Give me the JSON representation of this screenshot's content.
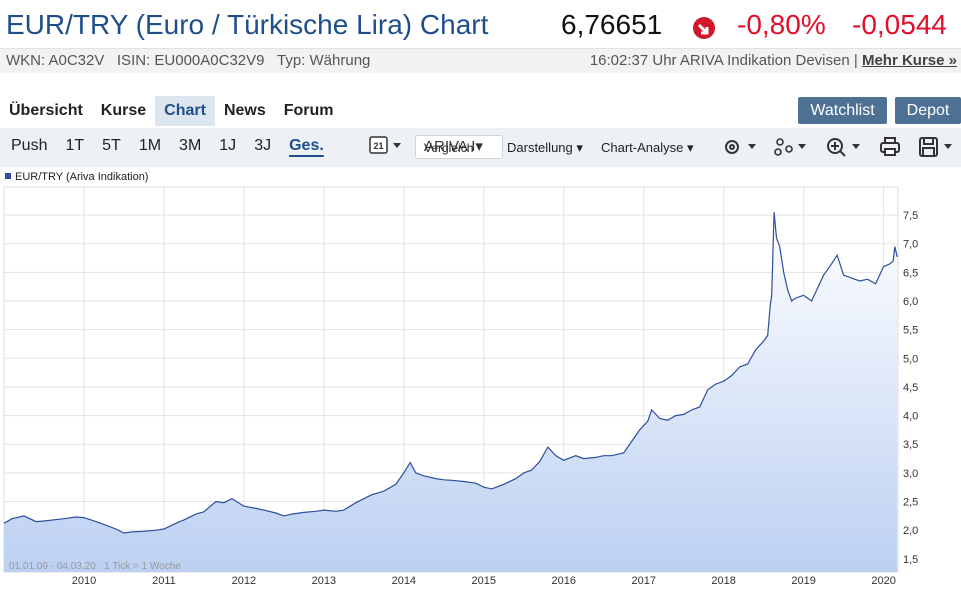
{
  "header": {
    "title": "EUR/TRY (Euro / Türkische Lira) Chart",
    "price": "6,76651",
    "change_pct": "-0,80%",
    "change_abs": "-0,0544",
    "wkn": "WKN: A0C32V",
    "isin": "ISIN: EU000A0C32V9",
    "typ": "Typ: Währung",
    "timestamp": "16:02:37 Uhr ARIVA Indikation Devisen",
    "separator": "|",
    "more_link": "Mehr Kurse »"
  },
  "nav": {
    "tabs": [
      "Übersicht",
      "Kurse",
      "Chart",
      "News",
      "Forum"
    ],
    "active_tab": "Chart",
    "buttons": [
      "Watchlist",
      "Depot"
    ]
  },
  "toolbar": {
    "ranges": [
      "Push",
      "1T",
      "5T",
      "1M",
      "3M",
      "1J",
      "3J",
      "Ges."
    ],
    "active_range": "Ges.",
    "compare_overlay": "ARIVA I",
    "compare": "Vergleich",
    "menus": [
      "Darstellung",
      "Chart-Analyse"
    ]
  },
  "chart_data": {
    "type": "line",
    "footnote": "01.01.09 - 04.03.20   1 Tick = 1 Woche",
    "x": [
      2009.0,
      2009.1,
      2009.25,
      2009.4,
      2009.5,
      2009.75,
      2009.9,
      2010.0,
      2010.15,
      2010.25,
      2010.4,
      2010.5,
      2010.6,
      2010.75,
      2010.9,
      2011.0,
      2011.15,
      2011.25,
      2011.4,
      2011.5,
      2011.65,
      2011.75,
      2011.85,
      2012.0,
      2012.15,
      2012.25,
      2012.4,
      2012.5,
      2012.6,
      2012.75,
      2012.9,
      2013.0,
      2013.15,
      2013.25,
      2013.4,
      2013.5,
      2013.6,
      2013.75,
      2013.9,
      2014.0,
      2014.08,
      2014.15,
      2014.25,
      2014.4,
      2014.5,
      2014.6,
      2014.75,
      2014.9,
      2015.0,
      2015.1,
      2015.25,
      2015.4,
      2015.5,
      2015.6,
      2015.7,
      2015.8,
      2015.9,
      2016.0,
      2016.15,
      2016.25,
      2016.4,
      2016.5,
      2016.6,
      2016.75,
      2016.85,
      2016.95,
      2017.05,
      2017.1,
      2017.2,
      2017.3,
      2017.4,
      2017.5,
      2017.6,
      2017.7,
      2017.8,
      2017.9,
      2018.0,
      2018.1,
      2018.2,
      2018.3,
      2018.4,
      2018.5,
      2018.55,
      2018.58,
      2018.6,
      2018.63,
      2018.66,
      2018.7,
      2018.75,
      2018.8,
      2018.85,
      2018.9,
      2019.0,
      2019.1,
      2019.2,
      2019.25,
      2019.35,
      2019.42,
      2019.5,
      2019.6,
      2019.7,
      2019.8,
      2019.9,
      2020.0,
      2020.08,
      2020.12,
      2020.14,
      2020.17
    ],
    "series": [
      {
        "name": "EUR/TRY (Ariva Indikation)",
        "color": "#2b4f9c",
        "values": [
          2.12,
          2.2,
          2.25,
          2.15,
          2.16,
          2.2,
          2.23,
          2.22,
          2.15,
          2.1,
          2.02,
          1.95,
          1.97,
          1.98,
          2.0,
          2.02,
          2.12,
          2.18,
          2.28,
          2.32,
          2.5,
          2.48,
          2.55,
          2.42,
          2.38,
          2.35,
          2.3,
          2.25,
          2.28,
          2.31,
          2.33,
          2.35,
          2.33,
          2.35,
          2.48,
          2.55,
          2.62,
          2.68,
          2.8,
          3.0,
          3.18,
          3.0,
          2.95,
          2.9,
          2.88,
          2.87,
          2.85,
          2.82,
          2.75,
          2.72,
          2.8,
          2.9,
          3.0,
          3.05,
          3.2,
          3.45,
          3.3,
          3.22,
          3.3,
          3.25,
          3.27,
          3.3,
          3.3,
          3.35,
          3.55,
          3.75,
          3.9,
          4.1,
          3.95,
          3.92,
          4.0,
          4.02,
          4.1,
          4.15,
          4.45,
          4.55,
          4.6,
          4.7,
          4.85,
          4.9,
          5.15,
          5.3,
          5.4,
          5.9,
          6.1,
          7.55,
          7.1,
          6.95,
          6.5,
          6.2,
          6.0,
          6.05,
          6.1,
          6.0,
          6.3,
          6.45,
          6.65,
          6.8,
          6.45,
          6.4,
          6.35,
          6.38,
          6.3,
          6.6,
          6.65,
          6.7,
          6.95,
          6.77
        ]
      }
    ],
    "xlim": [
      2009,
      2020.18
    ],
    "xticks": [
      2010,
      2011,
      2012,
      2013,
      2014,
      2015,
      2016,
      2017,
      2018,
      2019,
      2020
    ],
    "ylim": [
      1.27,
      7.99
    ],
    "yticks": [
      {
        "value": 1.5,
        "label": "1,5"
      },
      {
        "value": 2,
        "label": "2,0"
      },
      {
        "value": 2.5,
        "label": "2,5"
      },
      {
        "value": 3,
        "label": "3,0"
      },
      {
        "value": 3.5,
        "label": "3,5"
      },
      {
        "value": 4,
        "label": "4,0"
      },
      {
        "value": 4.5,
        "label": "4,5"
      },
      {
        "value": 5,
        "label": "5,0"
      },
      {
        "value": 5.5,
        "label": "5,5"
      },
      {
        "value": 6,
        "label": "6,0"
      },
      {
        "value": 6.5,
        "label": "6,5"
      },
      {
        "value": 7,
        "label": "7,0"
      },
      {
        "value": 7.5,
        "label": "7,5"
      }
    ],
    "grid": true
  }
}
